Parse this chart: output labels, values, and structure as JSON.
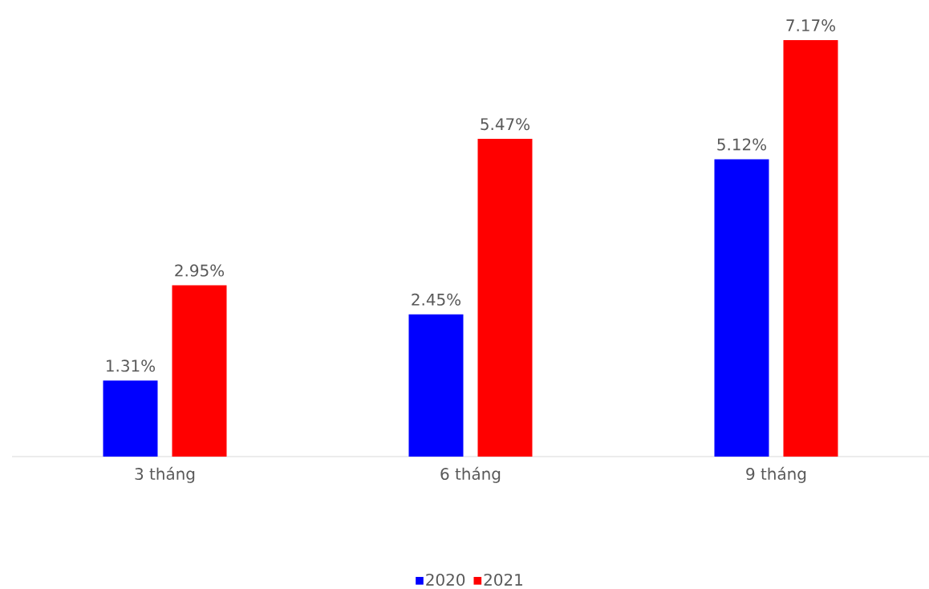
{
  "chart_data": {
    "type": "bar",
    "categories": [
      "3 tháng",
      "6 tháng",
      "9 tháng"
    ],
    "series": [
      {
        "name": "2020",
        "color": "#0000ff",
        "values": [
          1.31,
          2.45,
          5.12
        ],
        "value_labels": [
          "1.31%",
          "2.45%",
          "5.12%"
        ]
      },
      {
        "name": "2021",
        "color": "#ff0000",
        "values": [
          2.95,
          5.47,
          7.17
        ],
        "value_labels": [
          "2.95%",
          "5.47%",
          "7.17%"
        ]
      }
    ],
    "legend": "bottom"
  }
}
